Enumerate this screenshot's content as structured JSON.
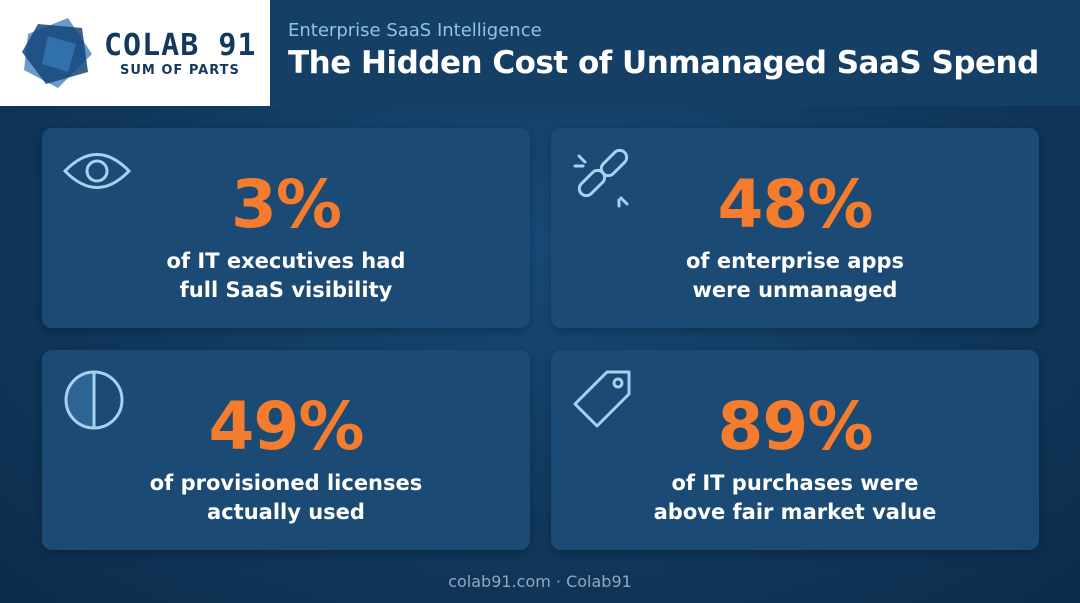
{
  "logo": {
    "name": "COLAB 91",
    "tagline": "SUM OF PARTS"
  },
  "header": {
    "kicker": "Enterprise SaaS Intelligence",
    "title": "The Hidden Cost of Unmanaged SaaS Spend"
  },
  "stats": [
    {
      "value": "3%",
      "lines": [
        "of IT executives had",
        "full SaaS visibility"
      ]
    },
    {
      "value": "48%",
      "lines": [
        "of enterprise apps",
        "were unmanaged"
      ]
    },
    {
      "value": "49%",
      "lines": [
        "of provisioned licenses",
        "actually used"
      ]
    },
    {
      "value": "89%",
      "lines": [
        "of IT purchases were",
        "above fair market value"
      ]
    }
  ],
  "footer": "colab91.com · Colab91"
}
